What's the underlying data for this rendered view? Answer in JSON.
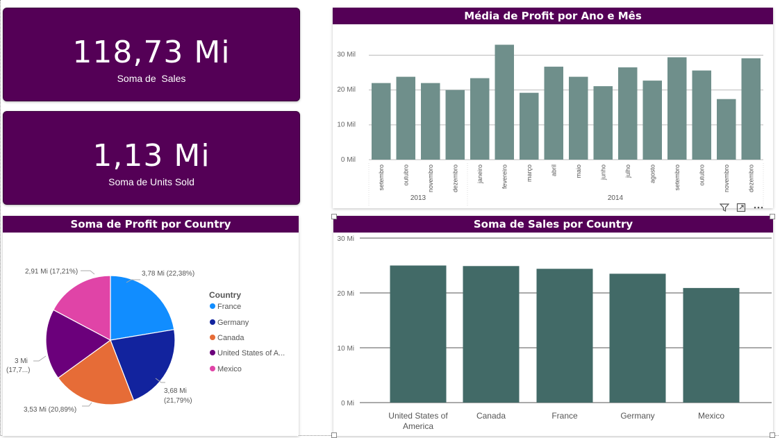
{
  "kpi_sales": {
    "value": "118,73 Mi",
    "label": "Soma de  Sales"
  },
  "kpi_units": {
    "value": "1,13 Mi",
    "label": "Soma de Units Sold"
  },
  "profit_month": {
    "title": "Média de Profit por Ano e Mês",
    "ticks": [
      "0 Mil",
      "10 Mil",
      "20 Mil",
      "30 Mil"
    ],
    "year_2013": "2013",
    "year_2014": "2014"
  },
  "profit_country": {
    "title": "Soma de Profit por Country",
    "legend_title": "Country",
    "legend": [
      "France",
      "Germany",
      "Canada",
      "United States of A...",
      "Mexico"
    ],
    "labels": {
      "france": "3,78 Mi (22,38%)",
      "germany_1": "3,68 Mi",
      "germany_2": "(21,79%)",
      "canada": "3,53 Mi (20,89%)",
      "usa_1": "3 Mi",
      "usa_2": "(17,7...)",
      "mexico": "2,91 Mi (17,21%)"
    }
  },
  "sales_country": {
    "title": "Soma de Sales por Country",
    "ticks": [
      "0 Mi",
      "10 Mi",
      "20 Mi",
      "30 Mi"
    ],
    "cat_usa_1": "United States of",
    "cat_usa_2": "America",
    "cat_canada": "Canada",
    "cat_france": "France",
    "cat_germany": "Germany",
    "cat_mexico": "Mexico"
  },
  "icons": [
    "filter-icon",
    "focus-mode-icon",
    "more-options-icon"
  ],
  "colors": {
    "card": "#540056",
    "bar_month": "#6f8f8b",
    "bar_country": "#426a67",
    "france": "#118dff",
    "germany": "#12239e",
    "canada": "#e66c37",
    "usa": "#6b007b",
    "mexico": "#e044a7"
  },
  "chart_data": [
    {
      "type": "bar",
      "title": "Média de Profit por Ano e Mês",
      "categories": [
        "setembro",
        "outubro",
        "novembro",
        "dezembro",
        "janeiro",
        "fevereiro",
        "março",
        "abril",
        "maio",
        "junho",
        "julho",
        "agosto",
        "setembro",
        "outubro",
        "novembro",
        "dezembro"
      ],
      "groups": [
        {
          "name": "2013",
          "count": 4
        },
        {
          "name": "2014",
          "count": 12
        }
      ],
      "values": [
        22000,
        23800,
        22000,
        20000,
        23400,
        33000,
        19200,
        26700,
        23800,
        21100,
        26500,
        22700,
        29400,
        25600,
        17400,
        29100
      ],
      "ylim": [
        0,
        34000
      ],
      "yticks": [
        0,
        10000,
        20000,
        30000
      ],
      "grid": true
    },
    {
      "type": "pie",
      "title": "Soma de Profit por Country",
      "legend_title": "Country",
      "legend": "right",
      "categories": [
        "France",
        "Germany",
        "Canada",
        "United States of America",
        "Mexico"
      ],
      "values": [
        3780000,
        3680000,
        3530000,
        3000000,
        2910000
      ],
      "percent": [
        22.38,
        21.79,
        20.89,
        17.73,
        17.21
      ]
    },
    {
      "type": "bar",
      "title": "Soma de Sales por Country",
      "categories": [
        "United States of America",
        "Canada",
        "France",
        "Germany",
        "Mexico"
      ],
      "values": [
        25000000,
        24900000,
        24400000,
        23500000,
        20900000
      ],
      "ylim": [
        0,
        30000000
      ],
      "yticks": [
        0,
        10000000,
        20000000,
        30000000
      ],
      "grid": true
    }
  ]
}
